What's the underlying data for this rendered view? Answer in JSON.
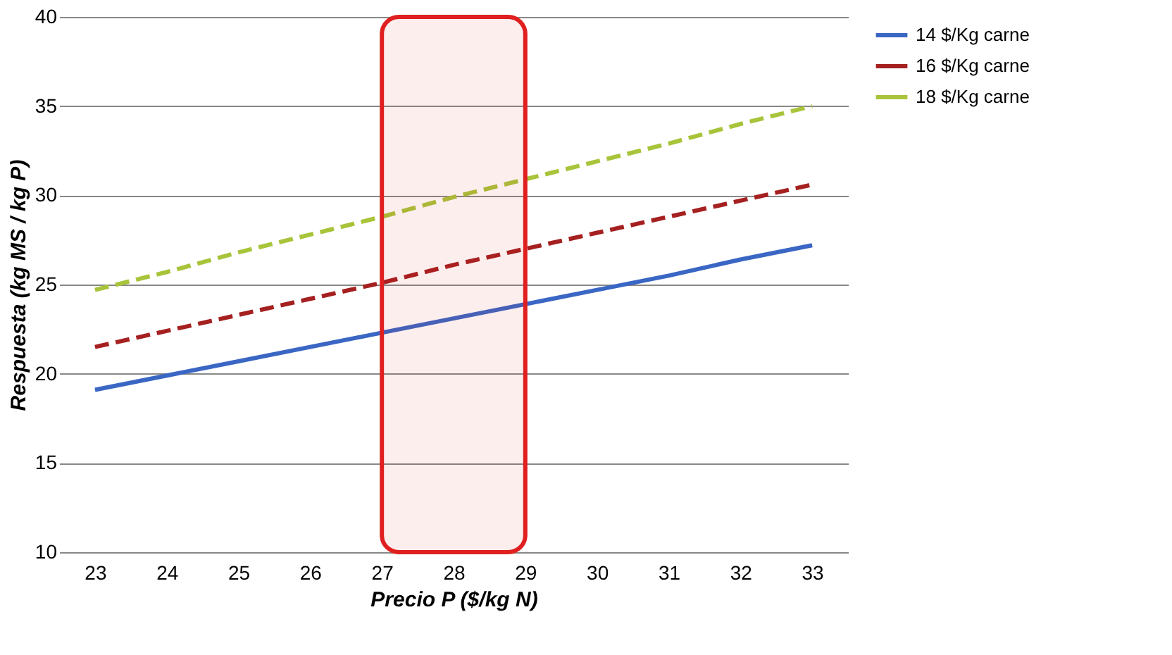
{
  "chart_data": {
    "type": "line",
    "xlabel": "Precio P ($/kg N)",
    "ylabel": "Respuesta (kg MS / kg P)",
    "x": [
      23,
      24,
      25,
      26,
      27,
      28,
      29,
      30,
      31,
      32,
      33
    ],
    "series": [
      {
        "name": "14 $/Kg carne",
        "color": "#3a66c4",
        "line_style": "solid",
        "values": [
          19.1,
          19.9,
          20.7,
          21.5,
          22.3,
          23.1,
          23.9,
          24.7,
          25.5,
          26.4,
          27.2
        ]
      },
      {
        "name": "16 $/Kg carne",
        "color": "#a52020",
        "line_style": "dashed",
        "values": [
          21.5,
          22.4,
          23.3,
          24.2,
          25.1,
          26.1,
          27.0,
          27.9,
          28.8,
          29.7,
          30.6
        ]
      },
      {
        "name": "18 $/Kg carne",
        "color": "#a8c43a",
        "line_style": "dashed",
        "values": [
          24.7,
          25.7,
          26.8,
          27.8,
          28.8,
          29.9,
          30.9,
          31.9,
          32.9,
          34.0,
          35.0
        ]
      }
    ],
    "xlim": [
      22.5,
      33.5
    ],
    "xticks": [
      23,
      24,
      25,
      26,
      27,
      28,
      29,
      30,
      31,
      32,
      33
    ],
    "ylim": [
      10,
      40
    ],
    "yticks": [
      10,
      15,
      20,
      25,
      30,
      35,
      40
    ],
    "bands": [
      {
        "axis": "x",
        "from": 27,
        "to": 29,
        "color": "#e02020"
      }
    ],
    "grid": "y",
    "legend": "right",
    "marker": "none"
  }
}
